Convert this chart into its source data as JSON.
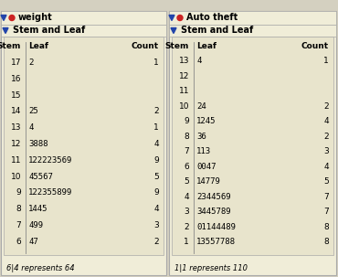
{
  "left_title": "weight",
  "left_subtitle": "Stem and Leaf",
  "left_headers": [
    "Stem",
    "Leaf",
    "Count"
  ],
  "left_rows": [
    [
      "17",
      "2",
      "1"
    ],
    [
      "16",
      "",
      ""
    ],
    [
      "15",
      "",
      ""
    ],
    [
      "14",
      "25",
      "2"
    ],
    [
      "13",
      "4",
      "1"
    ],
    [
      "12",
      "3888",
      "4"
    ],
    [
      "11",
      "122223569",
      "9"
    ],
    [
      "10",
      "45567",
      "5"
    ],
    [
      "9",
      "122355899",
      "9"
    ],
    [
      "8",
      "1445",
      "4"
    ],
    [
      "7",
      "499",
      "3"
    ],
    [
      "6",
      "47",
      "2"
    ]
  ],
  "left_note": "6|4 represents 64",
  "right_title": "Auto theft",
  "right_subtitle": "Stem and Leaf",
  "right_headers": [
    "Stem",
    "Leaf",
    "Count"
  ],
  "right_rows": [
    [
      "13",
      "4",
      "1"
    ],
    [
      "12",
      "",
      ""
    ],
    [
      "11",
      "",
      ""
    ],
    [
      "10",
      "24",
      "2"
    ],
    [
      "9",
      "1245",
      "4"
    ],
    [
      "8",
      "36",
      "2"
    ],
    [
      "7",
      "113",
      "3"
    ],
    [
      "6",
      "0047",
      "4"
    ],
    [
      "5",
      "14779",
      "5"
    ],
    [
      "4",
      "2344569",
      "7"
    ],
    [
      "3",
      "3445789",
      "7"
    ],
    [
      "2",
      "01144489",
      "8"
    ],
    [
      "1",
      "13557788",
      "8"
    ]
  ],
  "right_note": "1|1 represents 110",
  "bg_outer": "#d4d0c0",
  "bg_panel": "#f0edd8",
  "bg_table": "#e8e4cc",
  "text_color": "#000000",
  "border_color": "#aaaaaa",
  "blue_arrow": "#2244aa",
  "red_dot": "#cc2222"
}
